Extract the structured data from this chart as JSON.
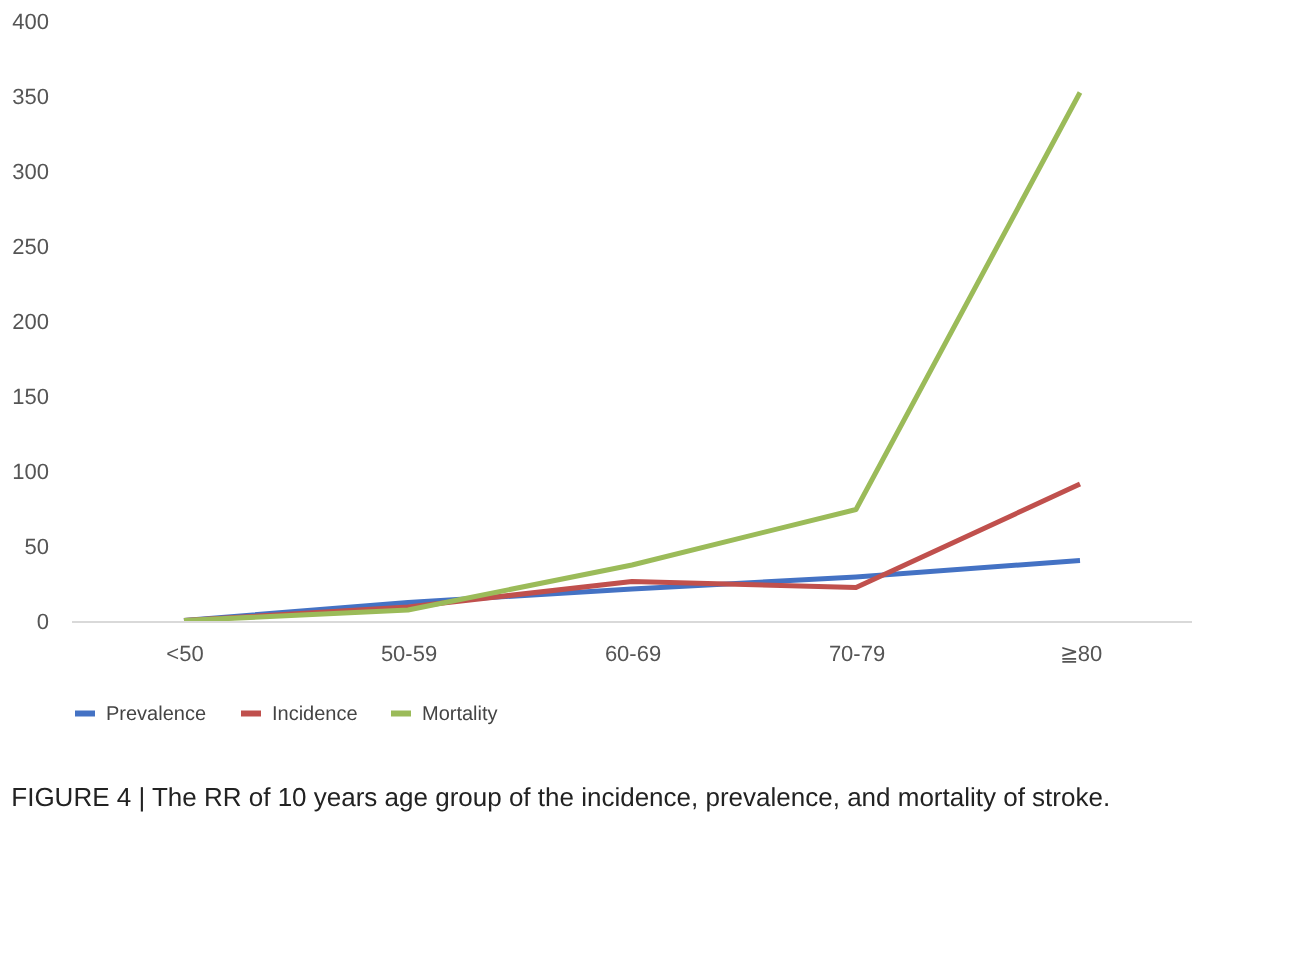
{
  "chart_data": {
    "type": "line",
    "categories": [
      "<50",
      "50-59",
      "60-69",
      "70-79",
      "≧80"
    ],
    "series": [
      {
        "name": "Prevalence",
        "color": "#4472c4",
        "values": [
          1,
          13,
          22,
          30,
          41
        ]
      },
      {
        "name": "Incidence",
        "color": "#c0504d",
        "values": [
          1,
          10,
          27,
          23,
          92
        ]
      },
      {
        "name": "Mortality",
        "color": "#9bbb59",
        "values": [
          1,
          8,
          38,
          75,
          353
        ]
      }
    ],
    "ylim": [
      0,
      400
    ],
    "yticks": [
      0,
      50,
      100,
      150,
      200,
      250,
      300,
      350,
      400
    ],
    "grid": false,
    "legend": "bottom",
    "marker": "none",
    "line_style": "solid",
    "annotations": [
      "FIGURE 4 | The RR of 10 years age group of the incidence, prevalence, and mortality of stroke."
    ]
  }
}
